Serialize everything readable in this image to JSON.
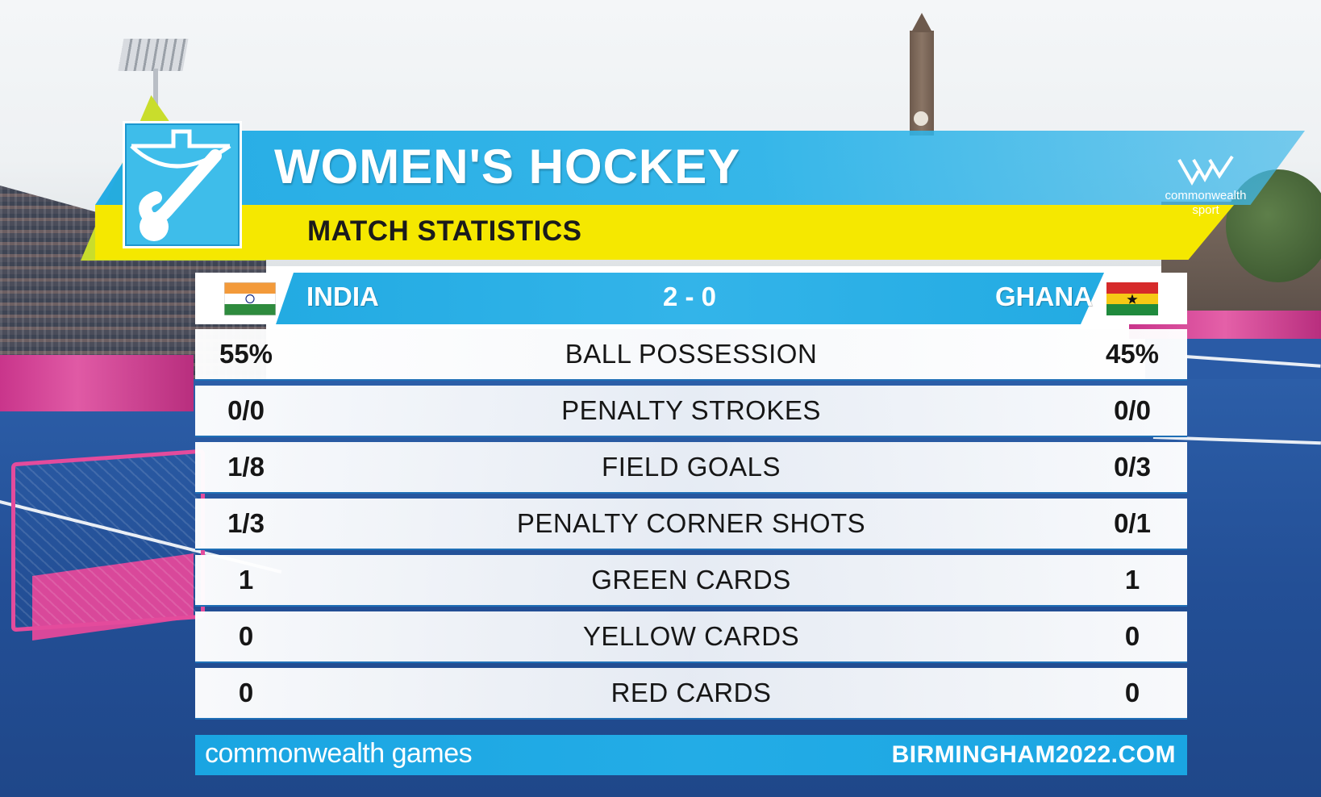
{
  "header": {
    "title": "WOMEN'S HOCKEY",
    "subtitle": "MATCH STATISTICS",
    "brand_line1": "commonwealth",
    "brand_line2": "sport"
  },
  "match": {
    "home_team": "INDIA",
    "away_team": "GHANA",
    "score": "2 - 0"
  },
  "stats": [
    {
      "label": "BALL POSSESSION",
      "home": "55%",
      "away": "45%"
    },
    {
      "label": "PENALTY STROKES",
      "home": "0/0",
      "away": "0/0"
    },
    {
      "label": "FIELD GOALS",
      "home": "1/8",
      "away": "0/3"
    },
    {
      "label": "PENALTY CORNER SHOTS",
      "home": "1/3",
      "away": "0/1"
    },
    {
      "label": "GREEN CARDS",
      "home": "1",
      "away": "1"
    },
    {
      "label": "YELLOW CARDS",
      "home": "0",
      "away": "0"
    },
    {
      "label": "RED CARDS",
      "home": "0",
      "away": "0"
    }
  ],
  "footer": {
    "left": "commonwealth games",
    "right": "BIRMINGHAM2022.COM"
  },
  "icons": {
    "sport": "field-hockey-icon",
    "home_flag": "india-flag-icon",
    "away_flag": "ghana-flag-icon",
    "brand": "commonwealth-sport-logo"
  },
  "colors": {
    "header_blue": "#1faae4",
    "header_yellow": "#f5e800",
    "accent_lime": "#c9dd2c",
    "row_divider": "#1f6fb6"
  }
}
